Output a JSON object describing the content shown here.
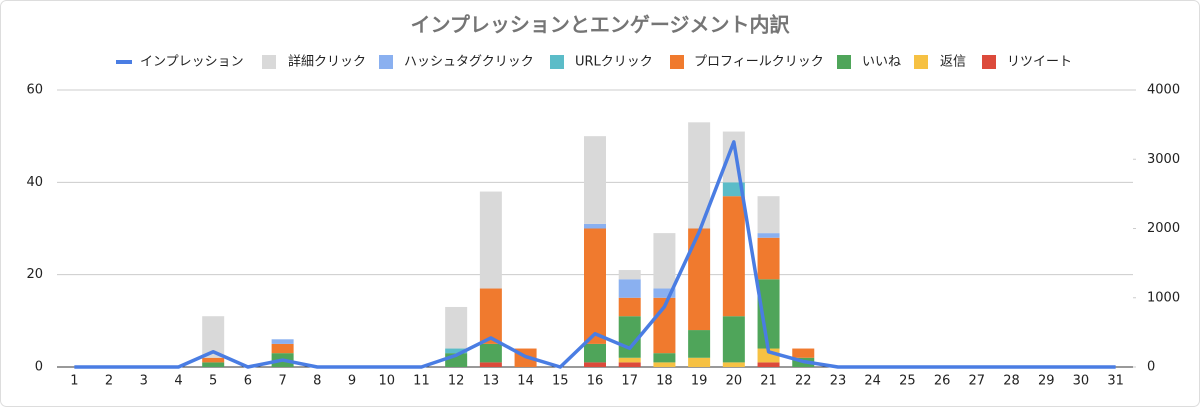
{
  "chart_data": {
    "type": "bar",
    "title": "インプレッションとエンゲージメント内訳",
    "categories": [
      "1",
      "2",
      "3",
      "4",
      "5",
      "6",
      "7",
      "8",
      "9",
      "10",
      "11",
      "12",
      "13",
      "14",
      "15",
      "16",
      "17",
      "18",
      "19",
      "20",
      "21",
      "22",
      "23",
      "24",
      "25",
      "26",
      "27",
      "28",
      "29",
      "30",
      "31"
    ],
    "series": [
      {
        "name": "インプレッション",
        "type": "line",
        "axis": "y2",
        "color": "#4a7de3",
        "values": [
          0,
          0,
          0,
          0,
          220,
          0,
          100,
          0,
          0,
          0,
          0,
          170,
          420,
          150,
          0,
          480,
          270,
          870,
          1950,
          3250,
          220,
          80,
          0,
          0,
          0,
          0,
          0,
          0,
          0,
          0,
          0
        ]
      },
      {
        "name": "詳細クリック",
        "color": "#d9d9d9",
        "values": [
          0,
          0,
          0,
          0,
          9,
          0,
          0,
          0,
          0,
          0,
          0,
          9,
          21,
          0,
          0,
          19,
          2,
          12,
          23,
          11,
          8,
          0,
          0,
          0,
          0,
          0,
          0,
          0,
          0,
          0,
          0
        ]
      },
      {
        "name": "ハッシュタグクリック",
        "color": "#8ab0f0",
        "values": [
          0,
          0,
          0,
          0,
          0,
          0,
          1,
          0,
          0,
          0,
          0,
          0,
          0,
          0,
          0,
          1,
          4,
          2,
          0,
          0,
          1,
          0,
          0,
          0,
          0,
          0,
          0,
          0,
          0,
          0,
          0
        ]
      },
      {
        "name": "URLクリック",
        "color": "#5bbcc8",
        "values": [
          0,
          0,
          0,
          0,
          0,
          0,
          0,
          0,
          0,
          0,
          0,
          1,
          0,
          0,
          0,
          0,
          0,
          0,
          0,
          3,
          0,
          0,
          0,
          0,
          0,
          0,
          0,
          0,
          0,
          0,
          0
        ]
      },
      {
        "name": "プロフィールクリック",
        "color": "#f07a2e",
        "values": [
          0,
          0,
          0,
          0,
          1,
          0,
          2,
          0,
          0,
          0,
          0,
          0,
          12,
          4,
          0,
          25,
          4,
          12,
          22,
          26,
          9,
          2,
          0,
          0,
          0,
          0,
          0,
          0,
          0,
          0,
          0
        ]
      },
      {
        "name": "いいね",
        "color": "#4fa55a",
        "values": [
          0,
          0,
          0,
          0,
          1,
          0,
          3,
          0,
          0,
          0,
          0,
          3,
          4,
          0,
          0,
          4,
          9,
          2,
          6,
          10,
          15,
          2,
          0,
          0,
          0,
          0,
          0,
          0,
          0,
          0,
          0
        ]
      },
      {
        "name": "返信",
        "color": "#f6c143",
        "values": [
          0,
          0,
          0,
          0,
          0,
          0,
          0,
          0,
          0,
          0,
          0,
          0,
          0,
          0,
          0,
          0,
          1,
          1,
          2,
          1,
          3,
          0,
          0,
          0,
          0,
          0,
          0,
          0,
          0,
          0,
          0
        ]
      },
      {
        "name": "リツイート",
        "color": "#dc4a3b",
        "values": [
          0,
          0,
          0,
          0,
          0,
          0,
          0,
          0,
          0,
          0,
          0,
          0,
          1,
          0,
          0,
          1,
          1,
          0,
          0,
          0,
          1,
          0,
          0,
          0,
          0,
          0,
          0,
          0,
          0,
          0,
          0
        ]
      }
    ],
    "ylim": [
      0,
      60
    ],
    "yticks": [
      0,
      20,
      40,
      60
    ],
    "y2lim": [
      0,
      4000
    ],
    "y2ticks": [
      0,
      1000,
      2000,
      3000,
      4000
    ],
    "stacked": true,
    "grid": true,
    "legend": "top"
  }
}
